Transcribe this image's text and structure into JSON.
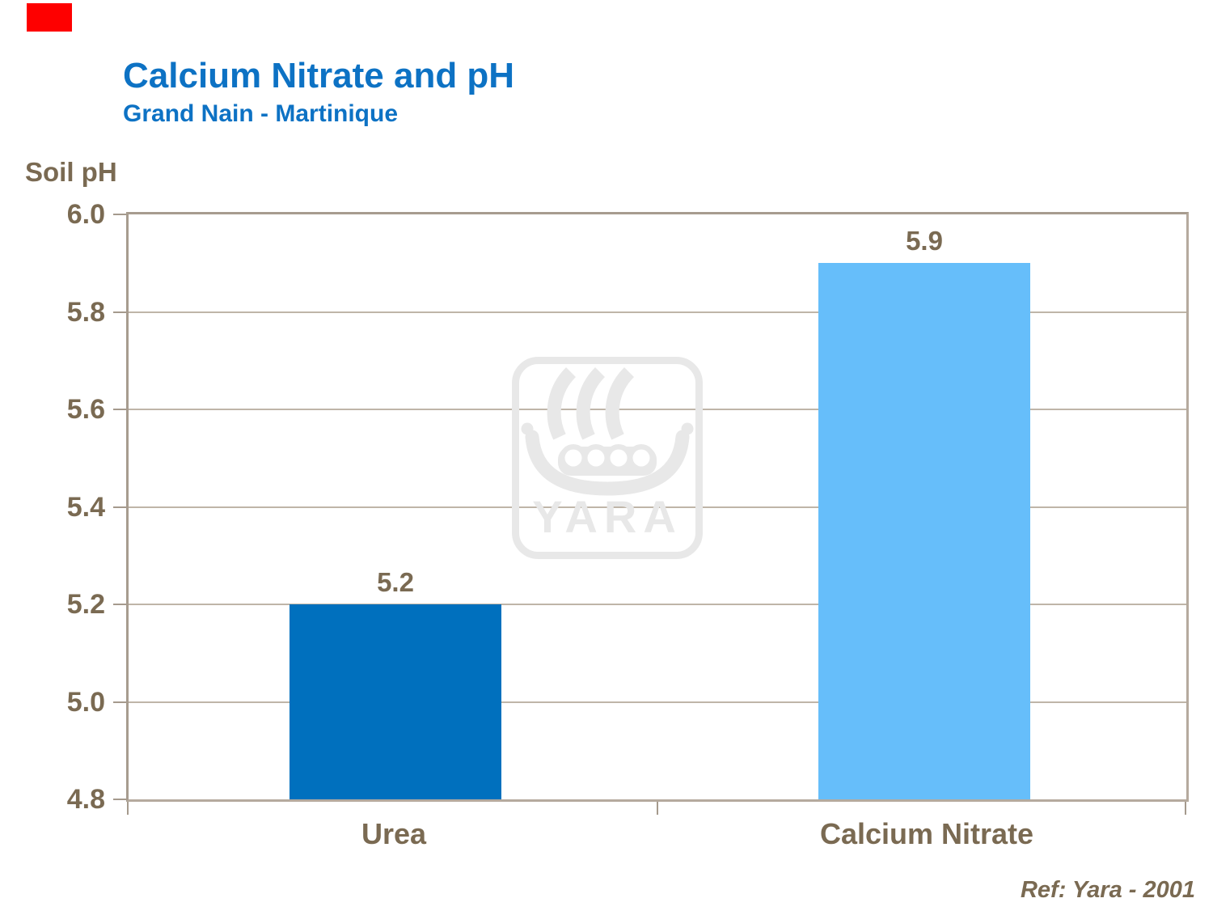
{
  "slide": {
    "title": "Calcium Nitrate and pH",
    "subtitle": "Grand Nain - Martinique",
    "reference": "Ref: Yara - 2001",
    "watermark_text": "YARA"
  },
  "chart_data": {
    "type": "bar",
    "title": "Calcium Nitrate and pH",
    "subtitle": "Grand Nain - Martinique",
    "ylabel": "Soil pH",
    "categories": [
      "Urea",
      "Calcium Nitrate"
    ],
    "values": [
      5.2,
      5.9
    ],
    "value_labels": [
      "5.2",
      "5.9"
    ],
    "ylim": [
      4.8,
      6.0
    ],
    "ytick_step": 0.2,
    "yticks": [
      "6.0",
      "5.8",
      "5.6",
      "5.4",
      "5.2",
      "5.0",
      "4.8"
    ],
    "grid": "horizontal",
    "legend": "none",
    "bar_colors": [
      "#0070be",
      "#66befa"
    ],
    "annotation": "Ref: Yara - 2001"
  },
  "colors": {
    "accent_red": "#fe0000",
    "title_blue": "#0d72c4",
    "text_brown": "#7a6a52",
    "frame_taupe": "#b2a79b",
    "gridline_taupe": "#bfb5a8",
    "tick_taupe": "#a59a8d",
    "watermark_gray": "#e8e8e8"
  }
}
